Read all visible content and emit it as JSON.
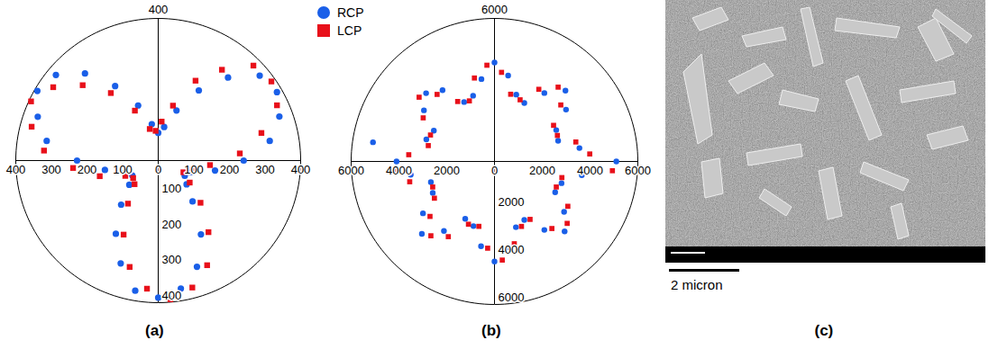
{
  "chart_data": [
    {
      "type": "polar_scatter",
      "title": "(a)",
      "legend": "top-right",
      "ylim": [
        0,
        400
      ],
      "yticks": [
        0,
        100,
        200,
        300,
        400
      ],
      "series": [
        {
          "name": "RCP",
          "color": "#1a5fe8",
          "marker": "circle",
          "x": [
            0,
            10,
            20,
            30,
            40,
            50,
            60,
            70,
            80,
            90,
            100,
            110,
            120,
            130,
            140,
            150,
            160,
            170,
            180,
            190,
            200,
            210,
            220,
            230,
            240,
            250,
            260,
            270,
            280,
            290,
            300,
            310,
            320,
            330,
            340,
            350
          ],
          "values": [
            240,
            318,
            362,
            385,
            372,
            305,
            228,
            150,
            96,
            78,
            104,
            165,
            242,
            320,
            375,
            392,
            360,
            318,
            228,
            152,
            98,
            84,
            106,
            162,
            238,
            308,
            372,
            386,
            366,
            318,
            240,
            150,
            104,
            86,
            96,
            162
          ]
        },
        {
          "name": "LCP",
          "color": "#e8101a",
          "marker": "square",
          "x": [
            5,
            15,
            25,
            35,
            45,
            55,
            65,
            75,
            85,
            95,
            105,
            115,
            125,
            135,
            145,
            155,
            165,
            175,
            185,
            195,
            205,
            215,
            225,
            235,
            245,
            255,
            265,
            275,
            285,
            295,
            305,
            315,
            325,
            335,
            345,
            355
          ],
          "values": [
            230,
            300,
            368,
            388,
            378,
            312,
            248,
            160,
            110,
            84,
            92,
            155,
            232,
            300,
            360,
            394,
            368,
            322,
            240,
            170,
            102,
            86,
            94,
            148,
            230,
            310,
            362,
            392,
            370,
            325,
            246,
            168,
            108,
            78,
            100,
            146
          ]
        }
      ]
    },
    {
      "type": "polar_scatter",
      "title": "(b)",
      "ylim": [
        0,
        6000
      ],
      "yticks": [
        0,
        2000,
        4000,
        6000
      ],
      "series": [
        {
          "name": "RCP",
          "color": "#1a5fe8",
          "marker": "circle",
          "x": [
            0,
            9,
            18,
            27,
            36,
            45,
            54,
            63,
            72,
            81,
            90,
            99,
            108,
            117,
            126,
            135,
            144,
            153,
            162,
            171,
            180,
            189,
            198,
            207,
            216,
            225,
            234,
            243,
            252,
            261,
            270,
            279,
            288,
            297,
            306,
            315,
            324,
            333,
            342,
            351
          ],
          "values": [
            5100,
            3600,
            2800,
            2900,
            3700,
            4200,
            3550,
            2750,
            2950,
            3650,
            4150,
            3500,
            2900,
            2800,
            3700,
            4050,
            3650,
            2850,
            3000,
            5150,
            4100,
            3550,
            2800,
            2900,
            3700,
            4300,
            3600,
            2700,
            2850,
            3600,
            4200,
            3650,
            2900,
            2750,
            3550,
            4150,
            3600,
            2850,
            2950,
            3700
          ]
        },
        {
          "name": "LCP",
          "color": "#e8101a",
          "marker": "square",
          "x": [
            4.5,
            13.5,
            22.5,
            31.5,
            40.5,
            49.5,
            58.5,
            67.5,
            76.5,
            85.5,
            94.5,
            103.5,
            112.5,
            121.5,
            130.5,
            139.5,
            148.5,
            157.5,
            166.5,
            175.5,
            184.5,
            193.5,
            202.5,
            211.5,
            220.5,
            229.5,
            238.5,
            247.5,
            256.5,
            265.5,
            274.5,
            283.5,
            292.5,
            301.5,
            310.5,
            319.5,
            328.5,
            337.5,
            346.5,
            355.5
          ],
          "values": [
            4000,
            3500,
            2850,
            2900,
            3650,
            4100,
            3550,
            2800,
            2900,
            3750,
            4050,
            3600,
            2750,
            2950,
            3700,
            4150,
            3500,
            2900,
            2850,
            3600,
            4200,
            3650,
            2800,
            2950,
            3550,
            4100,
            3700,
            2850,
            2800,
            3650,
            4150,
            3550,
            2950,
            2850,
            3700,
            4000,
            3600,
            2800,
            2900,
            4950
          ]
        }
      ]
    }
  ],
  "image_panel": {
    "title": "(c)",
    "scale_bar": "2 micron"
  }
}
